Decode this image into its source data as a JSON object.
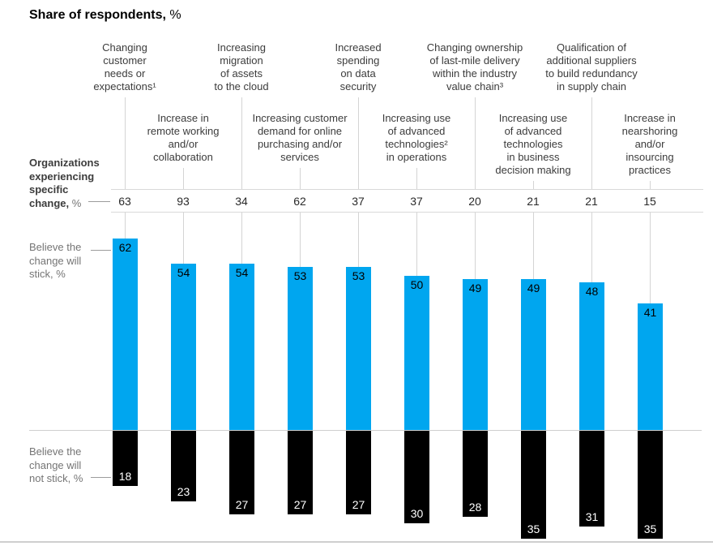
{
  "title": {
    "main": "Share of respondents,",
    "suffix": " %"
  },
  "row_labels": {
    "experiencing": {
      "main": "Organizations\nexperiencing\nspecific\nchange,",
      "suffix": " %"
    },
    "stick": "Believe the\nchange will\nstick, %",
    "not_stick": "Believe the\nchange will\nnot stick, %"
  },
  "colors": {
    "bar_stick": "#00a6ef",
    "bar_not_stick": "#000000",
    "guide_line": "#d4d4d4",
    "rule_line": "#d9d9d9",
    "muted_text": "#757575",
    "dark_text": "#3c3c3c"
  },
  "chart_data": {
    "type": "bar",
    "title": "Share of respondents, %",
    "unit": "%",
    "orientation": "diverging vertical bars around shared zero baseline",
    "legend_position": "left row labels",
    "categories": [
      "Changing\ncustomer\nneeds or\nexpectations¹",
      "Increase in\nremote working\nand/or\ncollaboration",
      "Increasing\nmigration\nof assets\nto the cloud",
      "Increasing customer\ndemand for online\npurchasing and/or\nservices",
      "Increased\nspending\non data\nsecurity",
      "Increasing use\nof advanced\ntechnologies²\nin operations",
      "Changing ownership\nof last-mile delivery\nwithin the industry\nvalue chain³",
      "Increasing use\nof advanced\ntechnologies\nin business\ndecision making",
      "Qualification of\nadditional suppliers\nto build redundancy\nin supply chain",
      "Increase in\nnearshoring\nand/or\ninsourcing\npractices"
    ],
    "series": [
      {
        "name": "Organizations experiencing specific change, %",
        "display": "number row",
        "values": [
          63,
          93,
          34,
          62,
          37,
          37,
          20,
          21,
          21,
          15
        ]
      },
      {
        "name": "Believe the change will stick, %",
        "display": "bar up",
        "color": "#00a6ef",
        "values": [
          62,
          54,
          54,
          53,
          53,
          50,
          49,
          49,
          48,
          41
        ]
      },
      {
        "name": "Believe the change will not stick, %",
        "display": "bar down",
        "color": "#000000",
        "values": [
          18,
          23,
          27,
          27,
          27,
          30,
          28,
          35,
          31,
          35
        ]
      }
    ]
  }
}
